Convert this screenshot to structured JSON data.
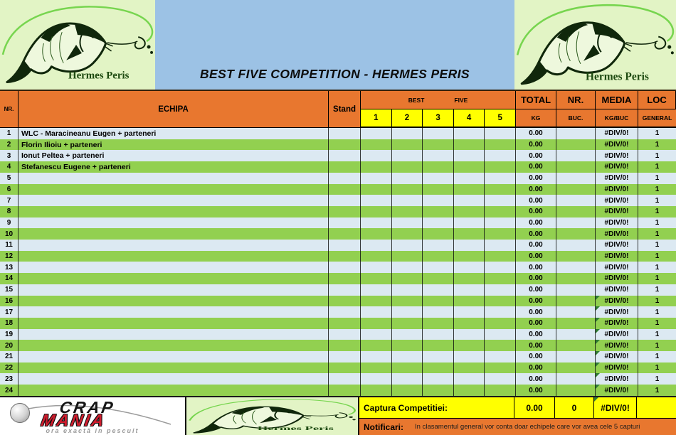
{
  "header": {
    "title": "BEST FIVE COMPETITION - HERMES PERIS",
    "brand": "Hermes Peris"
  },
  "table": {
    "col_nr": "NR.",
    "col_echipa": "ECHIPA",
    "col_stand": "Stand",
    "col_best": "BEST",
    "col_five": "FIVE",
    "best_nums": [
      "1",
      "2",
      "3",
      "4",
      "5"
    ],
    "col_total": "TOTAL",
    "col_total_sub": "KG",
    "col_nrbuc": "NR.",
    "col_nrbuc_sub": "BUC.",
    "col_media": "MEDIA",
    "col_media_sub": "KG/BUC",
    "col_loc": "LOC",
    "col_loc_sub": "GENERAL",
    "media_error_rows": [
      16,
      17,
      18,
      19,
      20,
      21,
      22,
      23,
      24
    ],
    "rows": [
      {
        "nr": "1",
        "echipa": "WLC - Maracineanu Eugen + parteneri",
        "stand": "",
        "b1": "",
        "b2": "",
        "b3": "",
        "b4": "",
        "b5": "",
        "total": "0.00",
        "buc": "",
        "media": "#DIV/0!",
        "loc": "1"
      },
      {
        "nr": "2",
        "echipa": "Florin Ilioiu + parteneri",
        "stand": "",
        "b1": "",
        "b2": "",
        "b3": "",
        "b4": "",
        "b5": "",
        "total": "0.00",
        "buc": "",
        "media": "#DIV/0!",
        "loc": "1"
      },
      {
        "nr": "3",
        "echipa": "Ionut Peltea + parteneri",
        "stand": "",
        "b1": "",
        "b2": "",
        "b3": "",
        "b4": "",
        "b5": "",
        "total": "0.00",
        "buc": "",
        "media": "#DIV/0!",
        "loc": "1"
      },
      {
        "nr": "4",
        "echipa": "Stefanescu Eugene + parteneri",
        "stand": "",
        "b1": "",
        "b2": "",
        "b3": "",
        "b4": "",
        "b5": "",
        "total": "0.00",
        "buc": "",
        "media": "#DIV/0!",
        "loc": "1"
      },
      {
        "nr": "5",
        "echipa": "",
        "stand": "",
        "b1": "",
        "b2": "",
        "b3": "",
        "b4": "",
        "b5": "",
        "total": "0.00",
        "buc": "",
        "media": "#DIV/0!",
        "loc": "1"
      },
      {
        "nr": "6",
        "echipa": "",
        "stand": "",
        "b1": "",
        "b2": "",
        "b3": "",
        "b4": "",
        "b5": "",
        "total": "0.00",
        "buc": "",
        "media": "#DIV/0!",
        "loc": "1"
      },
      {
        "nr": "7",
        "echipa": "",
        "stand": "",
        "b1": "",
        "b2": "",
        "b3": "",
        "b4": "",
        "b5": "",
        "total": "0.00",
        "buc": "",
        "media": "#DIV/0!",
        "loc": "1"
      },
      {
        "nr": "8",
        "echipa": "",
        "stand": "",
        "b1": "",
        "b2": "",
        "b3": "",
        "b4": "",
        "b5": "",
        "total": "0.00",
        "buc": "",
        "media": "#DIV/0!",
        "loc": "1"
      },
      {
        "nr": "9",
        "echipa": "",
        "stand": "",
        "b1": "",
        "b2": "",
        "b3": "",
        "b4": "",
        "b5": "",
        "total": "0.00",
        "buc": "",
        "media": "#DIV/0!",
        "loc": "1"
      },
      {
        "nr": "10",
        "echipa": "",
        "stand": "",
        "b1": "",
        "b2": "",
        "b3": "",
        "b4": "",
        "b5": "",
        "total": "0.00",
        "buc": "",
        "media": "#DIV/0!",
        "loc": "1"
      },
      {
        "nr": "11",
        "echipa": "",
        "stand": "",
        "b1": "",
        "b2": "",
        "b3": "",
        "b4": "",
        "b5": "",
        "total": "0.00",
        "buc": "",
        "media": "#DIV/0!",
        "loc": "1"
      },
      {
        "nr": "12",
        "echipa": "",
        "stand": "",
        "b1": "",
        "b2": "",
        "b3": "",
        "b4": "",
        "b5": "",
        "total": "0.00",
        "buc": "",
        "media": "#DIV/0!",
        "loc": "1"
      },
      {
        "nr": "13",
        "echipa": "",
        "stand": "",
        "b1": "",
        "b2": "",
        "b3": "",
        "b4": "",
        "b5": "",
        "total": "0.00",
        "buc": "",
        "media": "#DIV/0!",
        "loc": "1"
      },
      {
        "nr": "14",
        "echipa": "",
        "stand": "",
        "b1": "",
        "b2": "",
        "b3": "",
        "b4": "",
        "b5": "",
        "total": "0.00",
        "buc": "",
        "media": "#DIV/0!",
        "loc": "1"
      },
      {
        "nr": "15",
        "echipa": "",
        "stand": "",
        "b1": "",
        "b2": "",
        "b3": "",
        "b4": "",
        "b5": "",
        "total": "0.00",
        "buc": "",
        "media": "#DIV/0!",
        "loc": "1"
      },
      {
        "nr": "16",
        "echipa": "",
        "stand": "",
        "b1": "",
        "b2": "",
        "b3": "",
        "b4": "",
        "b5": "",
        "total": "0.00",
        "buc": "",
        "media": "#DIV/0!",
        "loc": "1"
      },
      {
        "nr": "17",
        "echipa": "",
        "stand": "",
        "b1": "",
        "b2": "",
        "b3": "",
        "b4": "",
        "b5": "",
        "total": "0.00",
        "buc": "",
        "media": "#DIV/0!",
        "loc": "1"
      },
      {
        "nr": "18",
        "echipa": "",
        "stand": "",
        "b1": "",
        "b2": "",
        "b3": "",
        "b4": "",
        "b5": "",
        "total": "0.00",
        "buc": "",
        "media": "#DIV/0!",
        "loc": "1"
      },
      {
        "nr": "19",
        "echipa": "",
        "stand": "",
        "b1": "",
        "b2": "",
        "b3": "",
        "b4": "",
        "b5": "",
        "total": "0.00",
        "buc": "",
        "media": "#DIV/0!",
        "loc": "1"
      },
      {
        "nr": "20",
        "echipa": "",
        "stand": "",
        "b1": "",
        "b2": "",
        "b3": "",
        "b4": "",
        "b5": "",
        "total": "0.00",
        "buc": "",
        "media": "#DIV/0!",
        "loc": "1"
      },
      {
        "nr": "21",
        "echipa": "",
        "stand": "",
        "b1": "",
        "b2": "",
        "b3": "",
        "b4": "",
        "b5": "",
        "total": "0.00",
        "buc": "",
        "media": "#DIV/0!",
        "loc": "1"
      },
      {
        "nr": "22",
        "echipa": "",
        "stand": "",
        "b1": "",
        "b2": "",
        "b3": "",
        "b4": "",
        "b5": "",
        "total": "0.00",
        "buc": "",
        "media": "#DIV/0!",
        "loc": "1"
      },
      {
        "nr": "23",
        "echipa": "",
        "stand": "",
        "b1": "",
        "b2": "",
        "b3": "",
        "b4": "",
        "b5": "",
        "total": "0.00",
        "buc": "",
        "media": "#DIV/0!",
        "loc": "1"
      },
      {
        "nr": "24",
        "echipa": "",
        "stand": "",
        "b1": "",
        "b2": "",
        "b3": "",
        "b4": "",
        "b5": "",
        "total": "0.00",
        "buc": "",
        "media": "#DIV/0!",
        "loc": "1"
      }
    ]
  },
  "footer": {
    "captura_label": "Captura Competitiei:",
    "captura_total": "0.00",
    "captura_buc": "0",
    "captura_media": "#DIV/0!",
    "notificari_label": "Notificari:",
    "notificari_text": "In clasamentul general vor conta doar echipele care vor avea cele 5 capturi",
    "crap_line1": "CRAP",
    "crap_line2": "MANIA",
    "crap_tagline": "ora exactă in pescuit"
  },
  "colors": {
    "header_orange": "#E8772F",
    "row_green": "#92D050",
    "row_light": "#DCE9F2",
    "band_blue": "#9CC2E5",
    "logo_green": "#E2F4C5",
    "cell_yellow": "#FFFF00",
    "mania_red": "#CF1D2E",
    "error_indicator_green": "#2E7D32"
  }
}
